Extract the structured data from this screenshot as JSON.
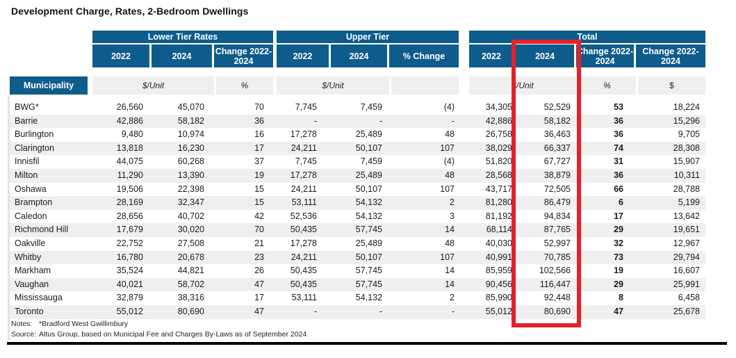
{
  "chart_data": {
    "type": "table",
    "title": "Development Charge, Rates,  2-Bedroom Dwellings",
    "municipality_header": "Municipality",
    "groups": [
      {
        "label": "Lower Tier Rates",
        "columns": [
          "2022",
          "2024",
          "Change 2022-2024"
        ],
        "units": [
          "$/Unit",
          "%"
        ]
      },
      {
        "label": "Upper Tier",
        "columns": [
          "2022",
          "2024",
          "% Change"
        ],
        "units": [
          "$/Unit",
          ""
        ]
      },
      {
        "label": "Total",
        "columns": [
          "2022",
          "2024",
          "Change 2022-2024",
          "Change 2022-2024"
        ],
        "units": [
          "$/Unit",
          "%",
          "$"
        ]
      }
    ],
    "rows": [
      {
        "municipality": "BWG*",
        "values": [
          "26,560",
          "45,070",
          "70",
          "7,745",
          "7,459",
          "(4)",
          "34,305",
          "52,529",
          "53",
          "18,224"
        ]
      },
      {
        "municipality": "Barrie",
        "values": [
          "42,886",
          "58,182",
          "36",
          "-",
          "-",
          "-",
          "42,886",
          "58,182",
          "36",
          "15,296"
        ]
      },
      {
        "municipality": "Burlington",
        "values": [
          "9,480",
          "10,974",
          "16",
          "17,278",
          "25,489",
          "48",
          "26,758",
          "36,463",
          "36",
          "9,705"
        ]
      },
      {
        "municipality": "Clarington",
        "values": [
          "13,818",
          "16,230",
          "17",
          "24,211",
          "50,107",
          "107",
          "38,029",
          "66,337",
          "74",
          "28,308"
        ]
      },
      {
        "municipality": "Innisfil",
        "values": [
          "44,075",
          "60,268",
          "37",
          "7,745",
          "7,459",
          "(4)",
          "51,820",
          "67,727",
          "31",
          "15,907"
        ]
      },
      {
        "municipality": "Milton",
        "values": [
          "11,290",
          "13,390",
          "19",
          "17,278",
          "25,489",
          "48",
          "28,568",
          "38,879",
          "36",
          "10,311"
        ]
      },
      {
        "municipality": "Oshawa",
        "values": [
          "19,506",
          "22,398",
          "15",
          "24,211",
          "50,107",
          "107",
          "43,717",
          "72,505",
          "66",
          "28,788"
        ]
      },
      {
        "municipality": "Brampton",
        "values": [
          "28,169",
          "32,347",
          "15",
          "53,111",
          "54,132",
          "2",
          "81,280",
          "86,479",
          "6",
          "5,199"
        ]
      },
      {
        "municipality": "Caledon",
        "values": [
          "28,656",
          "40,702",
          "42",
          "52,536",
          "54,132",
          "3",
          "81,192",
          "94,834",
          "17",
          "13,642"
        ]
      },
      {
        "municipality": "Richmond Hill",
        "values": [
          "17,679",
          "30,020",
          "70",
          "50,435",
          "57,745",
          "14",
          "68,114",
          "87,765",
          "29",
          "19,651"
        ]
      },
      {
        "municipality": "Oakville",
        "values": [
          "22,752",
          "27,508",
          "21",
          "17,278",
          "25,489",
          "48",
          "40,030",
          "52,997",
          "32",
          "12,967"
        ]
      },
      {
        "municipality": "Whitby",
        "values": [
          "16,780",
          "20,678",
          "23",
          "24,211",
          "50,107",
          "107",
          "40,991",
          "70,785",
          "73",
          "29,794"
        ]
      },
      {
        "municipality": "Markham",
        "values": [
          "35,524",
          "44,821",
          "26",
          "50,435",
          "57,745",
          "14",
          "85,959",
          "102,566",
          "19",
          "16,607"
        ]
      },
      {
        "municipality": "Vaughan",
        "values": [
          "40,021",
          "58,702",
          "47",
          "50,435",
          "57,745",
          "14",
          "90,456",
          "116,447",
          "29",
          "25,991"
        ]
      },
      {
        "municipality": "Mississauga",
        "values": [
          "32,879",
          "38,316",
          "17",
          "53,111",
          "54,132",
          "2",
          "85,990",
          "92,448",
          "8",
          "6,458"
        ]
      },
      {
        "municipality": "Toronto",
        "values": [
          "55,012",
          "80,690",
          "47",
          "-",
          "-",
          "-",
          "55,012",
          "80,690",
          "47",
          "25,678"
        ]
      }
    ],
    "highlight": "Total 2024 column outlined in red",
    "notes_label": "Notes:",
    "notes": "*Bradford West Gwillimbury",
    "source_label": "Source:",
    "source": "Altus Group, based on  Municipal Fee and Charges By-Laws as of September 2024",
    "colors": {
      "header_blue": "#0E5C8C",
      "row_stripe": "#EFEFEF",
      "highlight_red": "#E5202A"
    }
  }
}
